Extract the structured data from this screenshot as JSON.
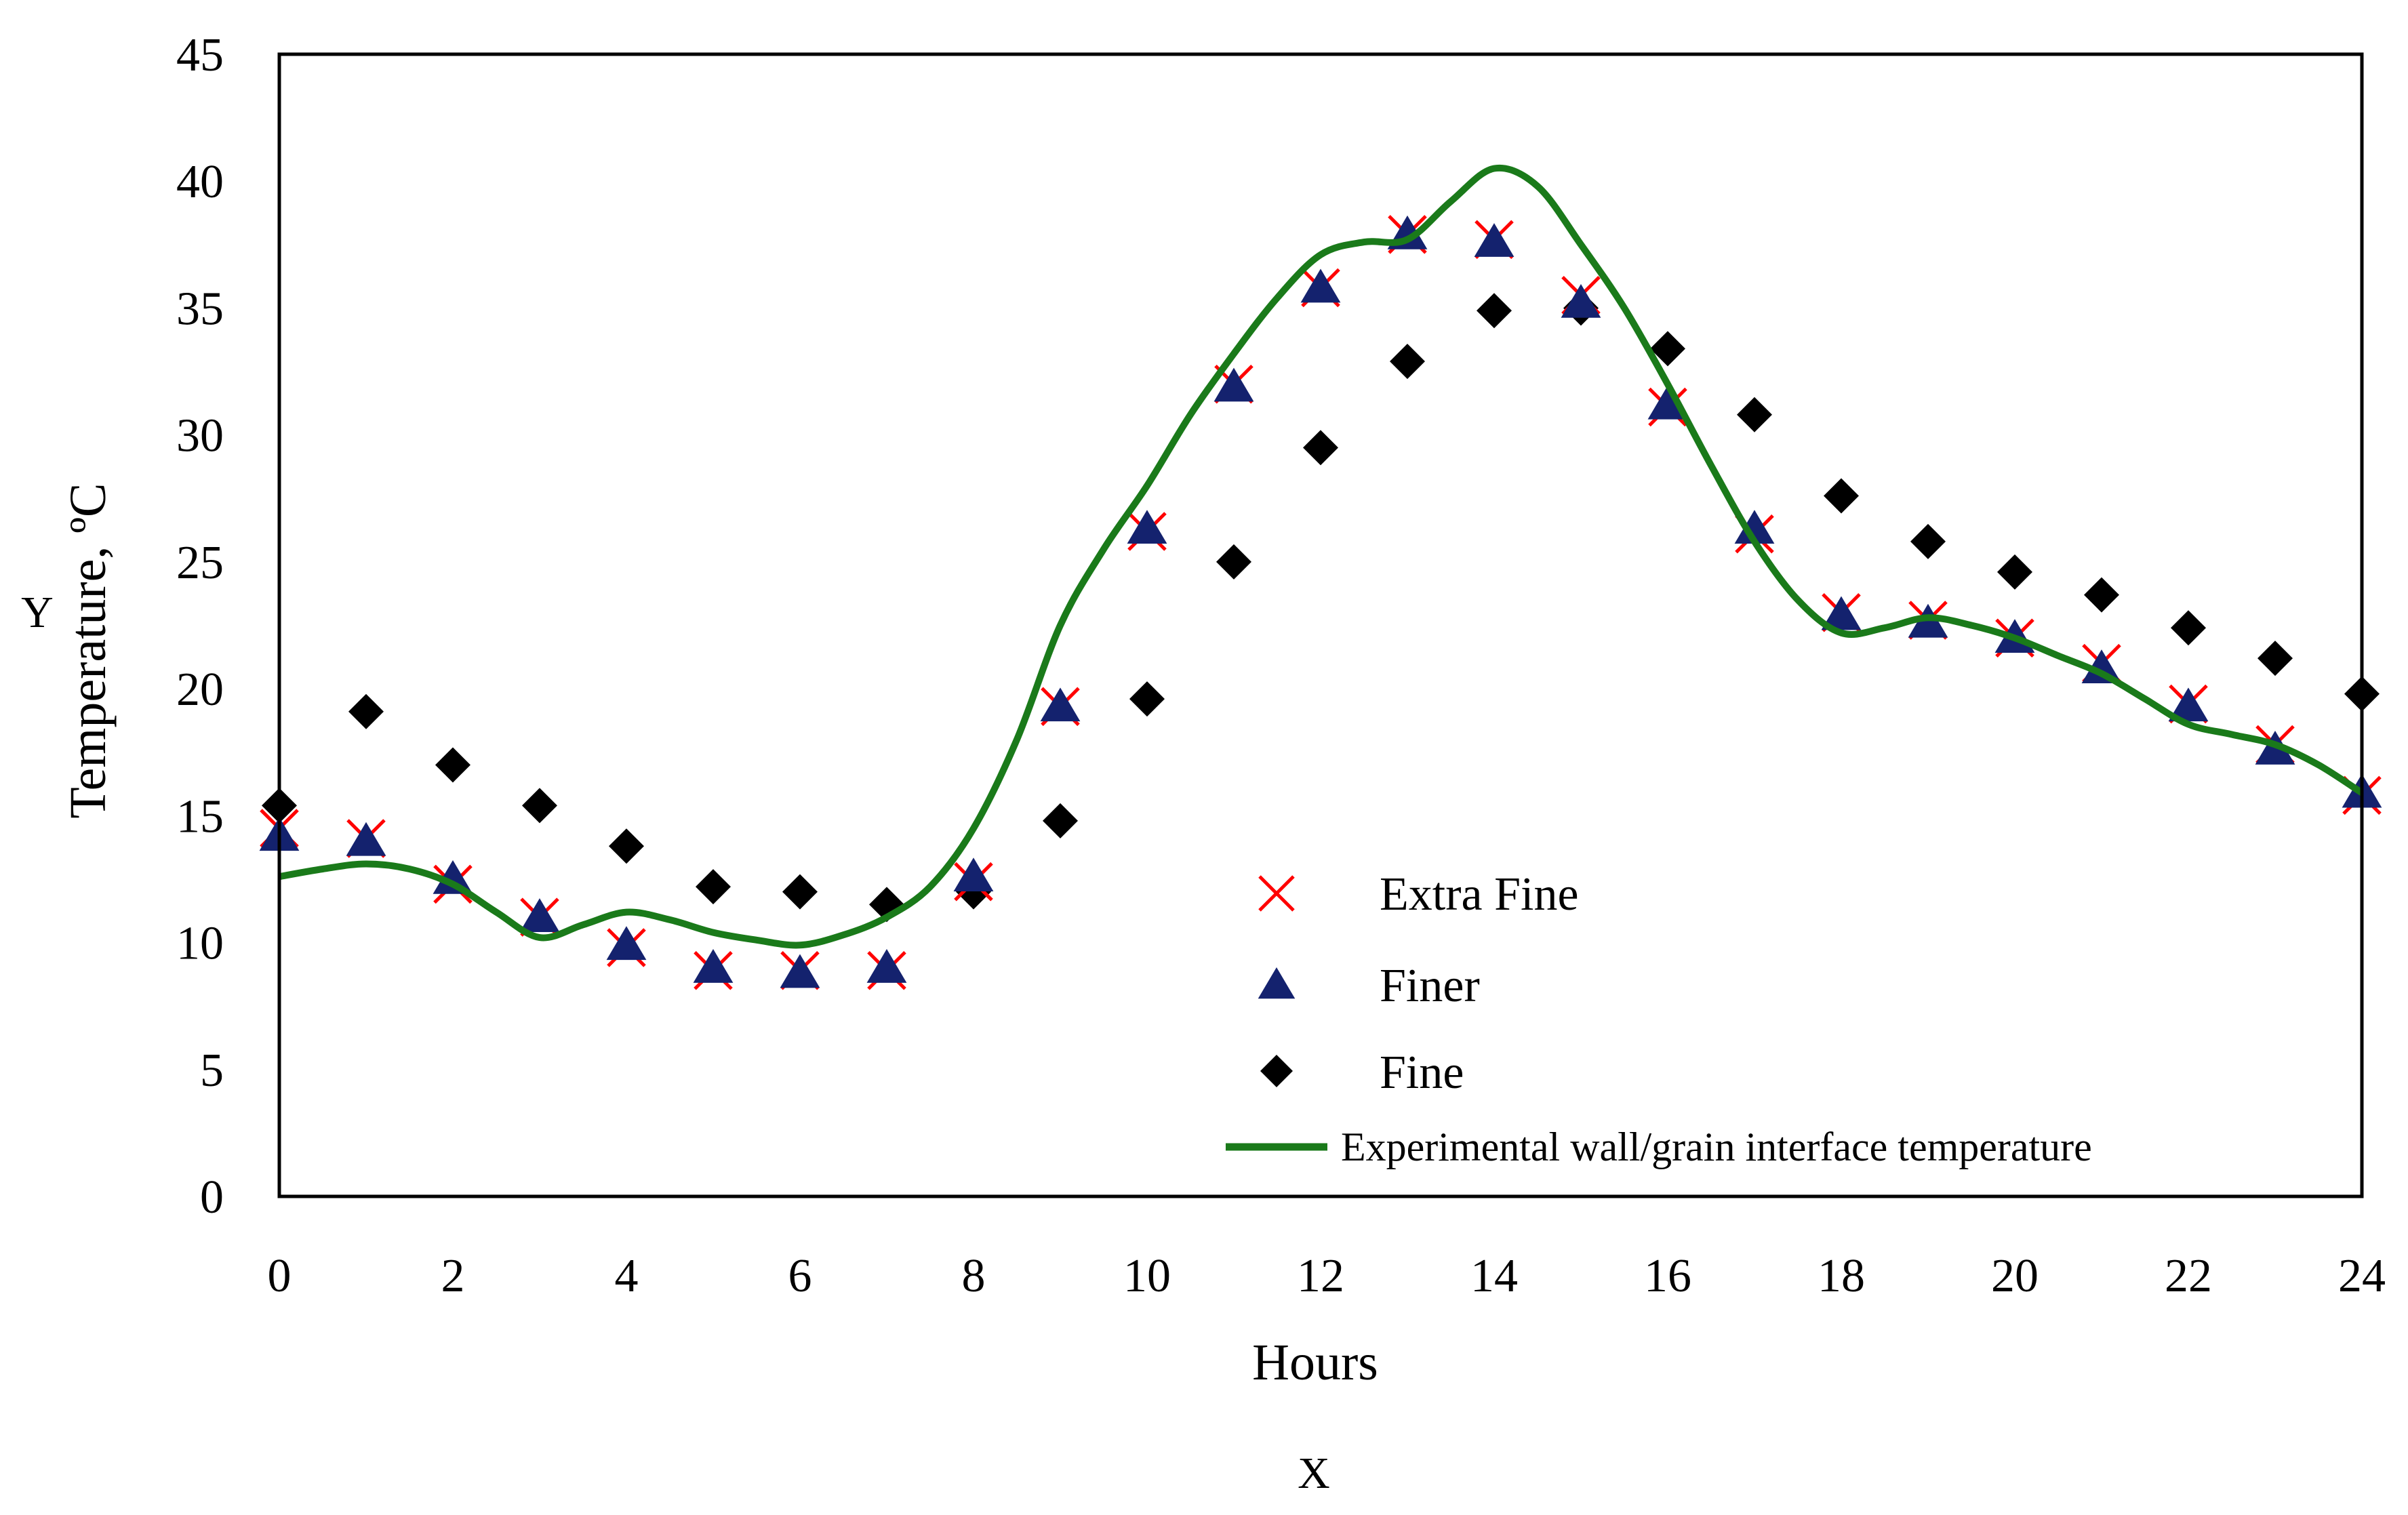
{
  "chart_data": {
    "type": "scatter",
    "title": "",
    "xlabel": "Hours",
    "ylabel": "Temperature, ºC",
    "x_axis_letter": "X",
    "y_axis_letter": "Y",
    "xlim": [
      0,
      24
    ],
    "ylim": [
      0,
      45
    ],
    "x_ticks": [
      0,
      2,
      4,
      6,
      8,
      10,
      12,
      14,
      16,
      18,
      20,
      22,
      24
    ],
    "y_ticks": [
      0,
      5,
      10,
      15,
      20,
      25,
      30,
      35,
      40,
      45
    ],
    "grid": false,
    "legend_position": "lower-right",
    "series": [
      {
        "name": "Extra Fine",
        "marker": "x",
        "color": "#ff0000",
        "x": [
          0,
          1,
          2,
          3,
          4,
          5,
          6,
          7,
          8,
          9,
          10,
          11,
          12,
          13,
          14,
          15,
          16,
          17,
          18,
          19,
          20,
          21,
          22,
          23,
          24
        ],
        "values": [
          14.5,
          14.1,
          12.3,
          11.0,
          9.8,
          8.9,
          8.9,
          8.9,
          12.4,
          19.3,
          26.2,
          32.0,
          35.8,
          37.9,
          37.7,
          35.5,
          31.1,
          26.1,
          23.0,
          22.7,
          22.0,
          21.0,
          19.4,
          17.8,
          15.8
        ]
      },
      {
        "name": "Finer",
        "marker": "triangle",
        "color": "#14226e",
        "x": [
          0,
          1,
          2,
          3,
          4,
          5,
          6,
          7,
          8,
          9,
          10,
          11,
          12,
          13,
          14,
          15,
          16,
          17,
          18,
          19,
          20,
          21,
          22,
          23,
          24
        ],
        "values": [
          14.2,
          14.0,
          12.5,
          11.0,
          9.9,
          9.0,
          8.8,
          9.0,
          12.6,
          19.3,
          26.3,
          31.9,
          35.8,
          37.9,
          37.6,
          35.2,
          31.2,
          26.3,
          22.9,
          22.6,
          22.0,
          20.8,
          19.3,
          17.6,
          15.9
        ]
      },
      {
        "name": "Fine",
        "marker": "diamond",
        "color": "#000000",
        "x": [
          0,
          1,
          2,
          3,
          4,
          5,
          6,
          7,
          8,
          9,
          10,
          11,
          12,
          13,
          14,
          15,
          16,
          17,
          18,
          19,
          20,
          21,
          22,
          23,
          24
        ],
        "values": [
          15.4,
          19.1,
          17.0,
          15.4,
          13.8,
          12.2,
          12.0,
          11.5,
          12.0,
          14.8,
          19.6,
          25.0,
          29.5,
          32.9,
          34.9,
          35.0,
          33.4,
          30.8,
          27.6,
          25.8,
          24.6,
          23.7,
          22.4,
          21.2,
          19.8
        ]
      },
      {
        "name": "Experimental wall/grain interface temperature",
        "marker": "line",
        "color": "#1a7a1a",
        "x": [
          0,
          0.5,
          1,
          1.5,
          2,
          2.5,
          3,
          3.5,
          4,
          4.5,
          5,
          5.5,
          6,
          6.5,
          7,
          7.5,
          8,
          8.5,
          9,
          9.5,
          10,
          10.5,
          11,
          11.5,
          12,
          12.5,
          13,
          13.5,
          14,
          14.5,
          15,
          15.5,
          16,
          16.5,
          17,
          17.5,
          18,
          18.5,
          19,
          19.5,
          20,
          20.5,
          21,
          21.5,
          22,
          22.5,
          23,
          23.5,
          24
        ],
        "values": [
          12.6,
          12.9,
          13.1,
          12.9,
          12.3,
          11.2,
          10.2,
          10.7,
          11.2,
          10.9,
          10.4,
          10.1,
          9.9,
          10.3,
          11.0,
          12.2,
          14.5,
          18.0,
          22.5,
          25.5,
          28.0,
          30.8,
          33.2,
          35.4,
          37.1,
          37.6,
          37.7,
          39.2,
          40.5,
          39.8,
          37.5,
          35.0,
          32.0,
          28.8,
          25.8,
          23.5,
          22.2,
          22.4,
          22.8,
          22.5,
          22.0,
          21.3,
          20.6,
          19.6,
          18.6,
          18.2,
          17.8,
          17.0,
          15.9
        ]
      }
    ]
  }
}
